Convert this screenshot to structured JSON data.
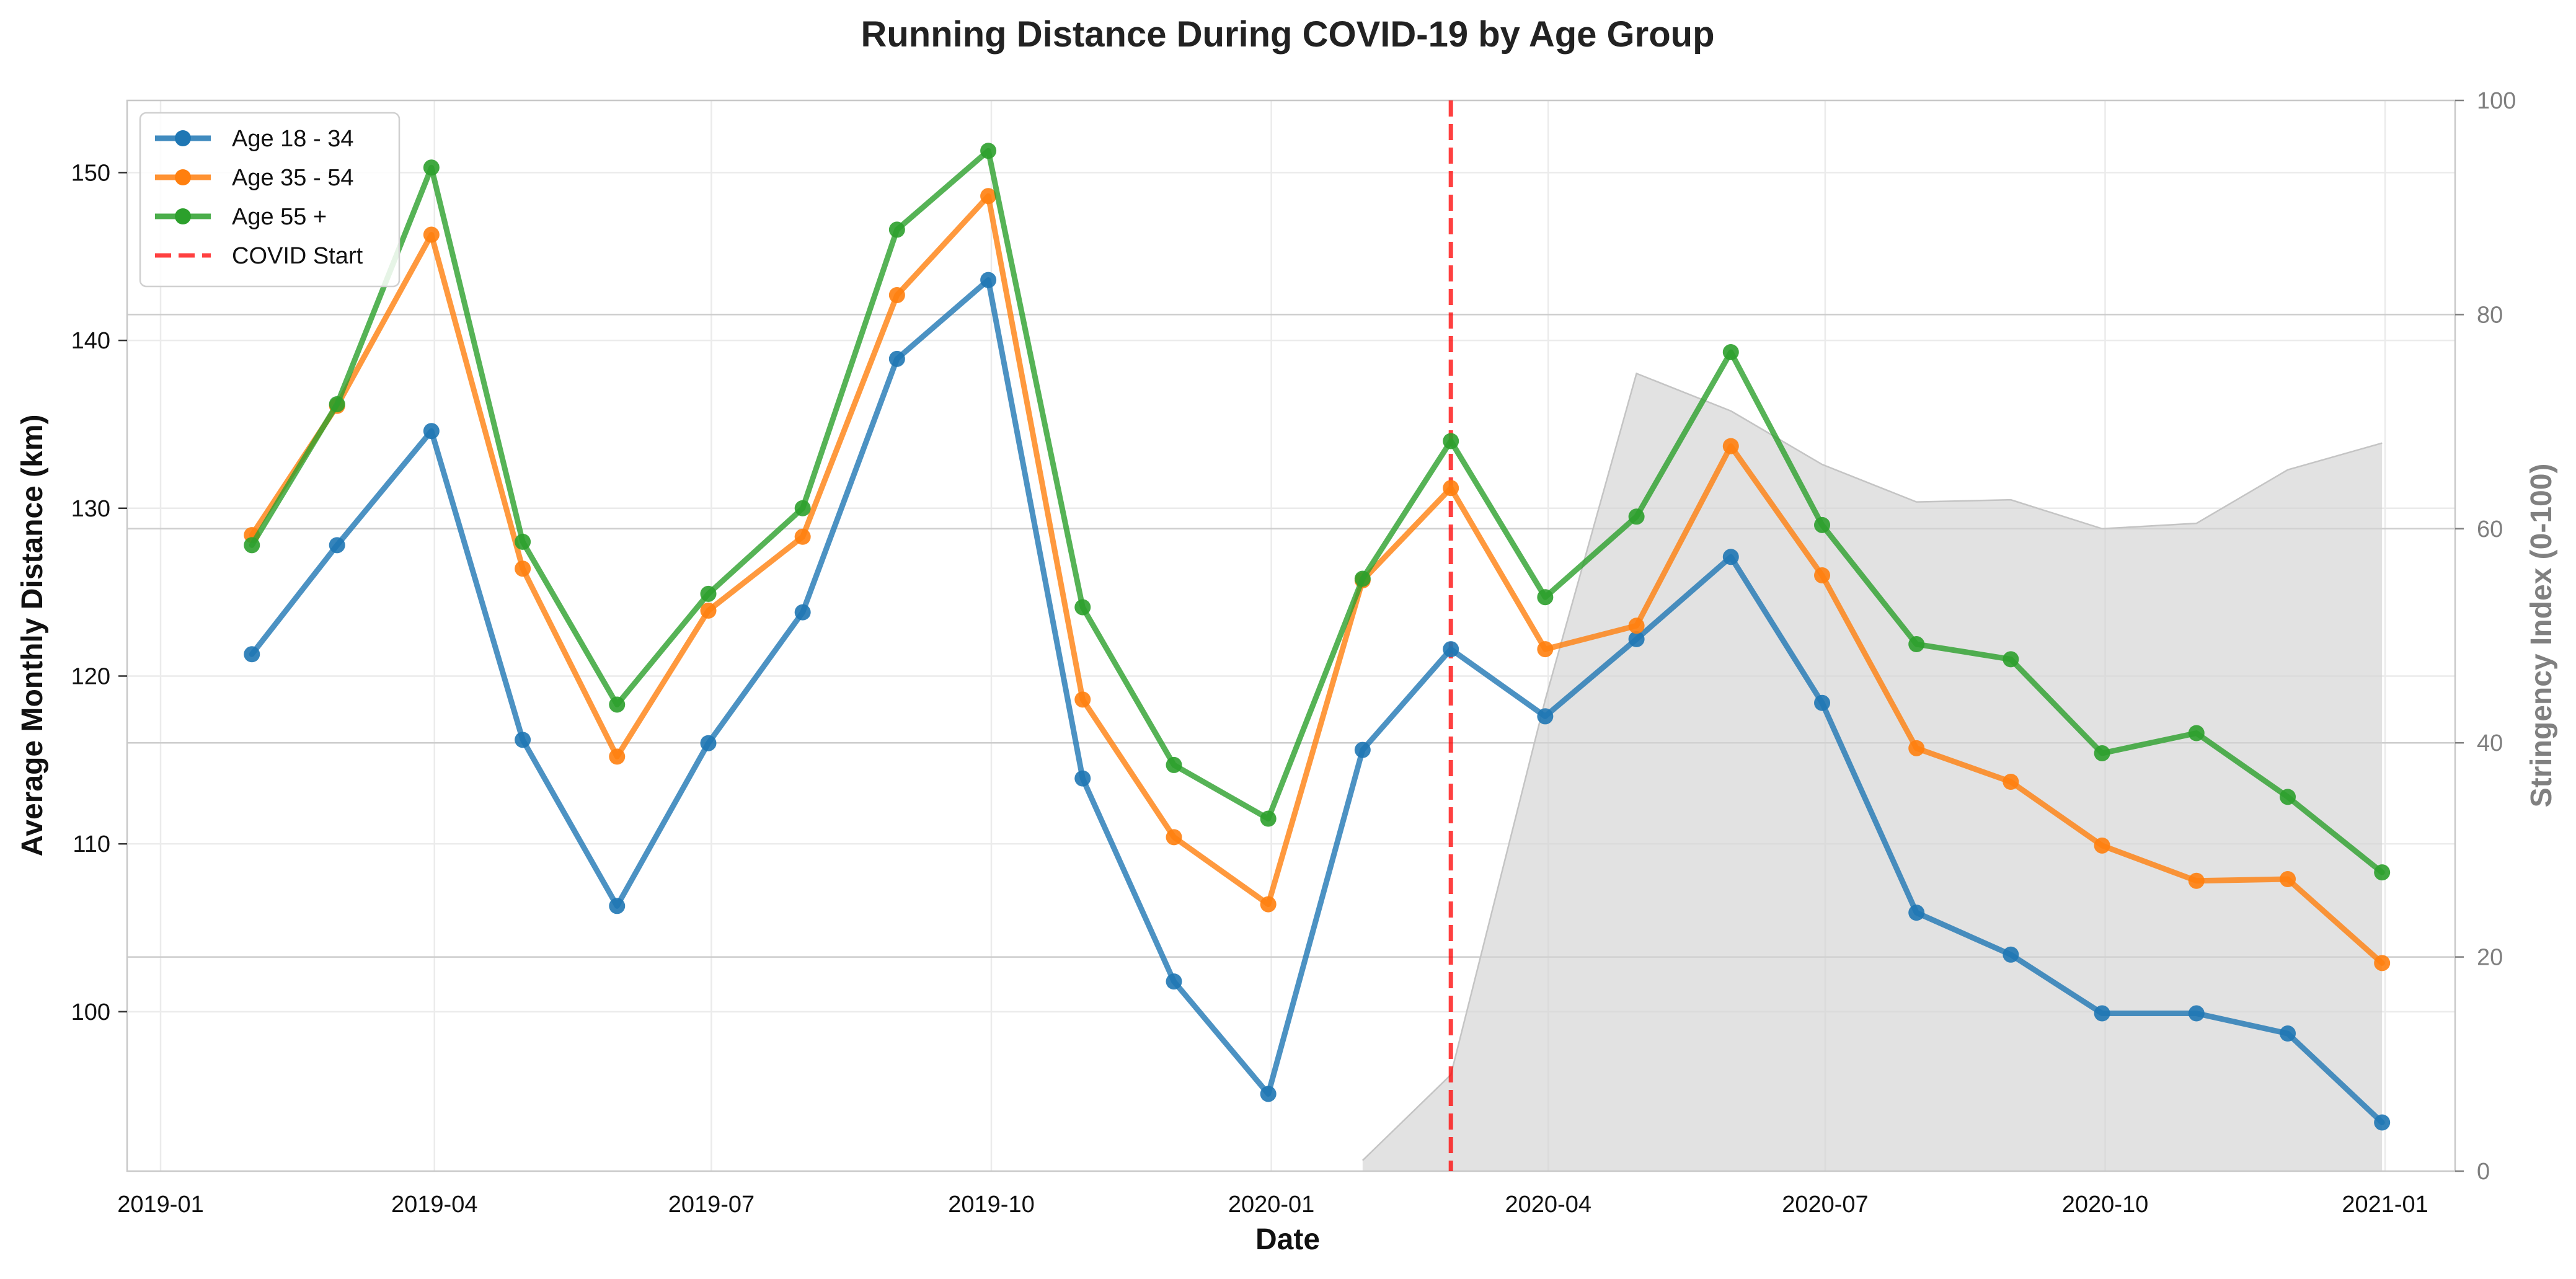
{
  "chart_data": {
    "type": "line",
    "title": "Running Distance During COVID-19 by Age Group",
    "xlabel": "Date",
    "ylabel": "Average Monthly Distance (km)",
    "y2label": "Stringency Index (0-100)",
    "ylim": [
      90.5,
      154.3
    ],
    "y2lim": [
      0,
      100
    ],
    "xlim": [
      "2018-12-21",
      "2021-01-24"
    ],
    "x_ticks": [
      "2019-01",
      "2019-04",
      "2019-07",
      "2019-10",
      "2020-01",
      "2020-04",
      "2020-07",
      "2020-10",
      "2021-01"
    ],
    "y_ticks": [
      100,
      110,
      120,
      130,
      140,
      150
    ],
    "y2_ticks": [
      0,
      20,
      40,
      60,
      80,
      100
    ],
    "grid": true,
    "legend_position": "top-left",
    "x": [
      "2019-01-31",
      "2019-02-28",
      "2019-03-31",
      "2019-04-30",
      "2019-05-31",
      "2019-06-30",
      "2019-07-31",
      "2019-08-31",
      "2019-09-30",
      "2019-10-31",
      "2019-11-30",
      "2019-12-31",
      "2020-01-31",
      "2020-02-29",
      "2020-03-31",
      "2020-04-30",
      "2020-05-31",
      "2020-06-30",
      "2020-07-31",
      "2020-08-31",
      "2020-09-30",
      "2020-10-31",
      "2020-11-30",
      "2020-12-31"
    ],
    "series": [
      {
        "name": "Age 18 - 34",
        "color": "#1f77b4",
        "values": [
          121.3,
          127.8,
          134.6,
          116.2,
          106.3,
          116.0,
          123.8,
          138.9,
          143.6,
          113.9,
          101.8,
          95.1,
          115.6,
          121.6,
          117.6,
          122.2,
          127.1,
          118.4,
          105.9,
          103.4,
          99.9,
          99.9,
          98.7,
          93.4
        ]
      },
      {
        "name": "Age 35 - 54",
        "color": "#ff7f0e",
        "values": [
          128.4,
          136.1,
          146.3,
          126.4,
          115.2,
          123.9,
          128.3,
          142.7,
          148.6,
          118.6,
          110.4,
          106.4,
          125.7,
          131.2,
          121.6,
          123.0,
          133.7,
          126.0,
          115.7,
          113.7,
          109.9,
          107.8,
          107.9,
          102.9
        ]
      },
      {
        "name": "Age 55 +",
        "color": "#2ca02c",
        "values": [
          127.8,
          136.2,
          150.3,
          128.0,
          118.3,
          124.9,
          130.0,
          146.6,
          151.3,
          124.1,
          114.7,
          111.5,
          125.8,
          134.0,
          124.7,
          129.5,
          139.3,
          129.0,
          121.9,
          121.0,
          115.4,
          116.6,
          112.8,
          108.3
        ]
      }
    ],
    "stringency": {
      "color": "#d3d3d3",
      "x": [
        "2020-01-31",
        "2020-02-29",
        "2020-03-31",
        "2020-04-30",
        "2020-05-31",
        "2020-06-30",
        "2020-07-31",
        "2020-08-31",
        "2020-09-30",
        "2020-10-31",
        "2020-11-30",
        "2020-12-31"
      ],
      "values": [
        1,
        9,
        44,
        74.5,
        71,
        66,
        62.5,
        62.7,
        60,
        60.5,
        65.5,
        68
      ]
    },
    "covid_start": {
      "label": "COVID Start",
      "date": "2020-02-29",
      "color": "#ff0000"
    }
  }
}
